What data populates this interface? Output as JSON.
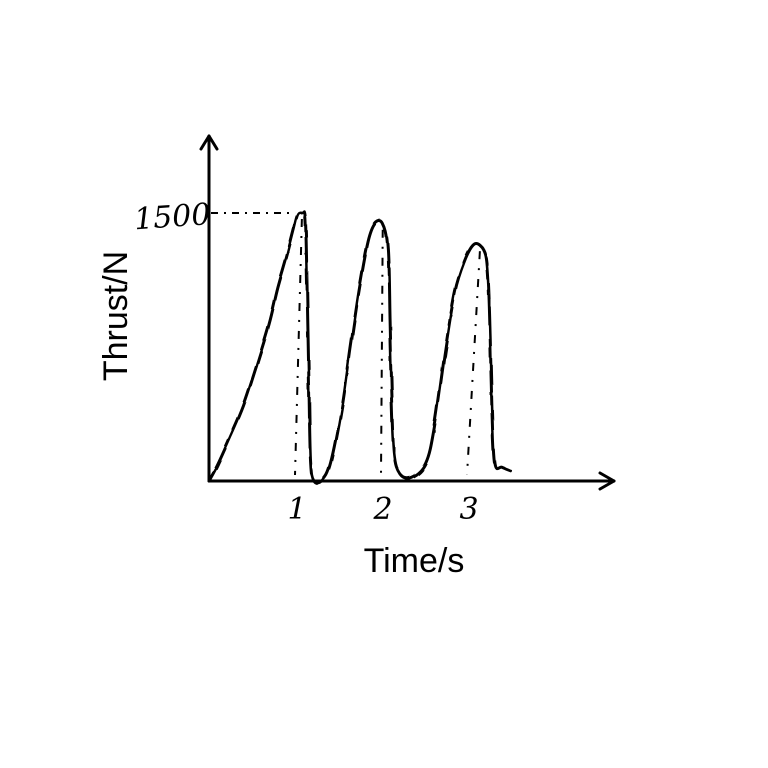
{
  "chart_data": {
    "type": "line",
    "xlabel": "Time/s",
    "ylabel": "Thrust/N",
    "x_ticks": [
      "1",
      "2",
      "3"
    ],
    "y_ticks": [
      "1500"
    ],
    "xlim": [
      0,
      5
    ],
    "ylim": [
      0,
      1800
    ],
    "grid": false,
    "annotations": [
      {
        "text": "peak reference line",
        "x": 1.07,
        "y": 1500,
        "style": "dash-dot"
      }
    ],
    "series": [
      {
        "values": [
          [
            0.0,
            0
          ],
          [
            0.1,
            90
          ],
          [
            0.25,
            250
          ],
          [
            0.4,
            420
          ],
          [
            0.55,
            640
          ],
          [
            0.7,
            880
          ],
          [
            0.8,
            1080
          ],
          [
            0.9,
            1250
          ],
          [
            0.98,
            1400
          ],
          [
            1.03,
            1490
          ],
          [
            1.08,
            1500
          ],
          [
            1.12,
            1470
          ],
          [
            1.14,
            1100
          ],
          [
            1.16,
            600
          ],
          [
            1.18,
            120
          ],
          [
            1.22,
            0
          ],
          [
            1.32,
            0
          ],
          [
            1.42,
            100
          ],
          [
            1.55,
            420
          ],
          [
            1.65,
            760
          ],
          [
            1.75,
            1080
          ],
          [
            1.85,
            1340
          ],
          [
            1.93,
            1440
          ],
          [
            2.02,
            1440
          ],
          [
            2.08,
            1300
          ],
          [
            2.1,
            900
          ],
          [
            2.12,
            500
          ],
          [
            2.15,
            160
          ],
          [
            2.22,
            40
          ],
          [
            2.35,
            20
          ],
          [
            2.52,
            100
          ],
          [
            2.62,
            300
          ],
          [
            2.75,
            740
          ],
          [
            2.86,
            1060
          ],
          [
            2.97,
            1230
          ],
          [
            3.07,
            1320
          ],
          [
            3.15,
            1320
          ],
          [
            3.22,
            1260
          ],
          [
            3.25,
            1100
          ],
          [
            3.27,
            800
          ],
          [
            3.29,
            400
          ],
          [
            3.32,
            100
          ],
          [
            3.4,
            80
          ],
          [
            3.5,
            60
          ]
        ]
      }
    ]
  }
}
